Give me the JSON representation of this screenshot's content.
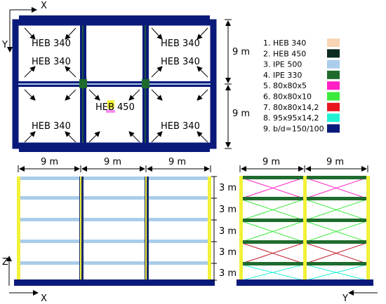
{
  "plan": {
    "axis_x": "X",
    "axis_y": "Y",
    "labels": {
      "tl_a": "HEB 340",
      "tl_b": "HEB 340",
      "tr_a": "HEB 340",
      "tr_b": "HEB 340",
      "center": "HEB 450",
      "bl": "HEB 340",
      "br": "HEB 340"
    },
    "dim_top": "9 m",
    "dim_bottom": "9 m"
  },
  "legend": {
    "items": [
      {
        "label": "1. HEB 340",
        "color": "#f7d5b5"
      },
      {
        "label": "2. HEB 450",
        "color": "#0d2b20"
      },
      {
        "label": "3. IPE 500",
        "color": "#a9cdea"
      },
      {
        "label": "4. IPE 330",
        "color": "#1f6b2e"
      },
      {
        "label": "5. 80x80x5",
        "color": "#ff1fc4"
      },
      {
        "label": "6. 80x80x10",
        "color": "#3bea3b"
      },
      {
        "label": "7. 80x80x14,2",
        "color": "#e8161e"
      },
      {
        "label": "8. 95x95x14,2",
        "color": "#22f2d4"
      },
      {
        "label": "9. b/d=150/100",
        "color": "#0a1a7a"
      }
    ]
  },
  "elev_x": {
    "axis_z": "Z",
    "axis_x": "X",
    "spans": [
      "9 m",
      "9 m",
      "9 m"
    ]
  },
  "elev_y": {
    "axis_y": "Y",
    "spans": [
      "9 m",
      "9 m"
    ],
    "story_heights": [
      "3 m",
      "3 m",
      "3 m",
      "3 m",
      "3 m"
    ]
  }
}
